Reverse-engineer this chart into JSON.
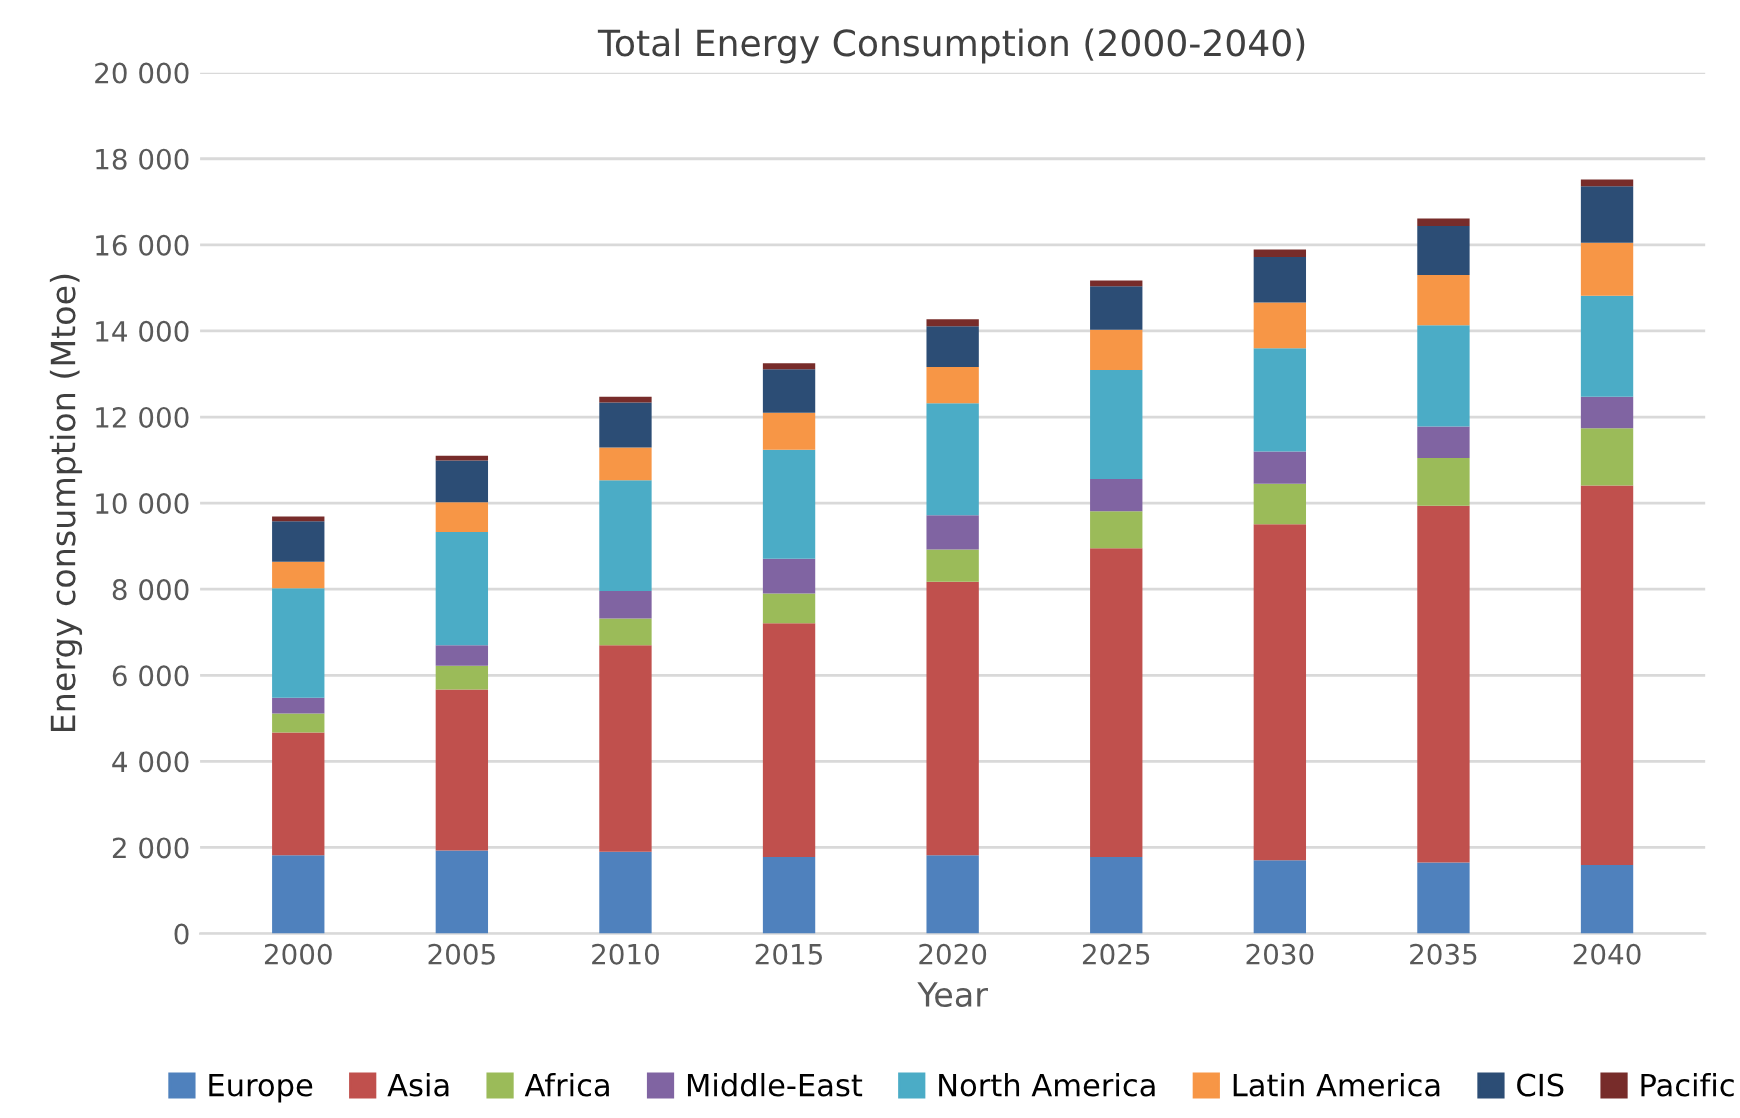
{
  "chart_data": {
    "type": "bar",
    "stacked": true,
    "title": "Total Energy Consumption (2000-2040)",
    "xlabel": "Year",
    "ylabel": "Energy consumption (Mtoe)",
    "categories": [
      "2000",
      "2005",
      "2010",
      "2015",
      "2020",
      "2025",
      "2030",
      "2035",
      "2040"
    ],
    "series": [
      {
        "name": "Europe",
        "color": "#4f81bd",
        "values": [
          1820,
          1930,
          1900,
          1780,
          1820,
          1780,
          1700,
          1650,
          1590
        ]
      },
      {
        "name": "Asia",
        "color": "#c0504d",
        "values": [
          2850,
          3740,
          4800,
          5430,
          6350,
          7170,
          7810,
          8290,
          8820
        ]
      },
      {
        "name": "Africa",
        "color": "#9bbb59",
        "values": [
          440,
          550,
          620,
          690,
          750,
          860,
          940,
          1110,
          1330
        ]
      },
      {
        "name": "Middle-East",
        "color": "#8064a2",
        "values": [
          370,
          480,
          640,
          810,
          800,
          750,
          750,
          730,
          730
        ]
      },
      {
        "name": "North America",
        "color": "#4bacc6",
        "values": [
          2540,
          2630,
          2570,
          2530,
          2600,
          2530,
          2400,
          2350,
          2350
        ]
      },
      {
        "name": "Latin America",
        "color": "#f79646",
        "values": [
          620,
          690,
          760,
          860,
          840,
          940,
          1060,
          1170,
          1230
        ]
      },
      {
        "name": "CIS",
        "color": "#2c4d75",
        "values": [
          940,
          970,
          1050,
          1010,
          950,
          1010,
          1060,
          1140,
          1310
        ]
      },
      {
        "name": "Pacific",
        "color": "#772c2a",
        "values": [
          110,
          110,
          130,
          140,
          160,
          130,
          170,
          170,
          160
        ]
      }
    ],
    "ylim": [
      0,
      20000
    ],
    "yticks": [
      0,
      {
        "value": 2000,
        "label": "2 000"
      },
      {
        "value": 4000,
        "label": "4 000"
      },
      {
        "value": 6000,
        "label": "6 000"
      },
      {
        "value": 8000,
        "label": "8 000"
      },
      {
        "value": 10000,
        "label": "10 000"
      },
      {
        "value": 12000,
        "label": "12 000"
      },
      {
        "value": 14000,
        "label": "14 000"
      },
      {
        "value": 16000,
        "label": "16 000"
      },
      {
        "value": 18000,
        "label": "18 000"
      },
      {
        "value": 20000,
        "label": "20 000"
      }
    ],
    "grid": "y",
    "legend": "bottom"
  }
}
